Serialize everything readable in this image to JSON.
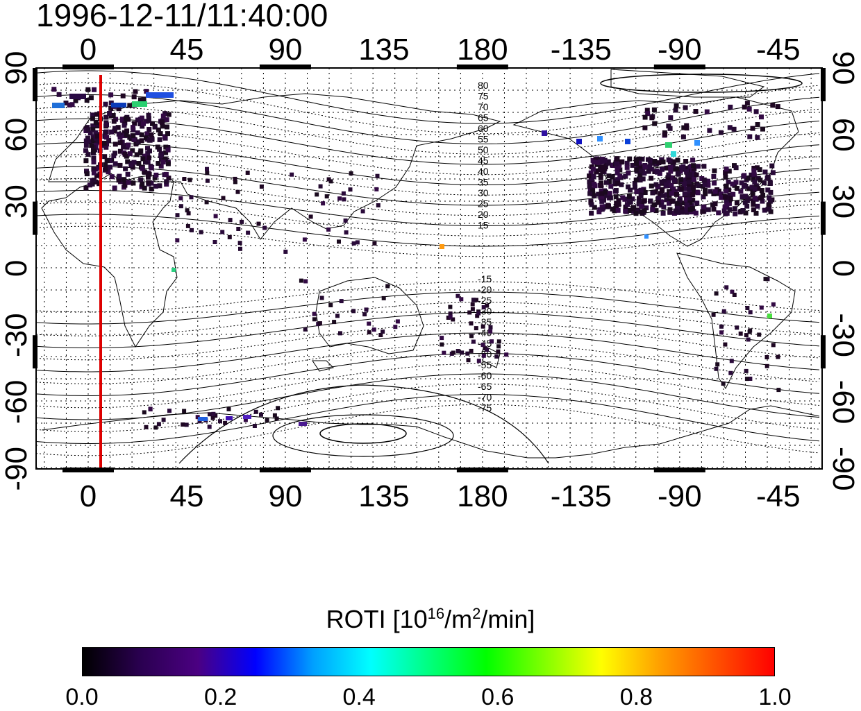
{
  "title": "1996-12-11/11:40:00",
  "map": {
    "lon_ticks_top": [
      "0",
      "45",
      "90",
      "135",
      "180",
      "-135",
      "-90",
      "-45"
    ],
    "lon_ticks_bottom": [
      "0",
      "45",
      "90",
      "135",
      "180",
      "-135",
      "-90",
      "-45"
    ],
    "lat_ticks_left": [
      "90",
      "60",
      "30",
      "0",
      "-30",
      "-60",
      "-90"
    ],
    "lat_ticks_right": [
      "90",
      "60",
      "30",
      "0",
      "-30",
      "-60",
      "-90"
    ],
    "mlat_labels_north": [
      "80",
      "75",
      "70",
      "65",
      "60",
      "55",
      "50",
      "45",
      "40",
      "35",
      "30",
      "25",
      "20",
      "15"
    ],
    "mlat_labels_south": [
      "-15",
      "-20",
      "-25",
      "-30",
      "-35",
      "-40",
      "-45",
      "-50",
      "-55",
      "-60",
      "-65",
      "-70",
      "-75"
    ],
    "terminator_color": "#dd0000",
    "terminator_longitude": 5
  },
  "colorbar": {
    "title": "ROTI  [10",
    "title_sup1": "16",
    "title_mid": "/m",
    "title_sup2": "2",
    "title_end": "/min]",
    "ticks": [
      "0.0",
      "0.2",
      "0.4",
      "0.6",
      "0.8",
      "1.0"
    ],
    "stops": [
      "#000000",
      "#2a0050",
      "#4b0082",
      "#0000ff",
      "#00a0ff",
      "#00ffff",
      "#00ff80",
      "#00ff00",
      "#80ff00",
      "#ffff00",
      "#ffa000",
      "#ff5000",
      "#ff0000"
    ]
  }
}
